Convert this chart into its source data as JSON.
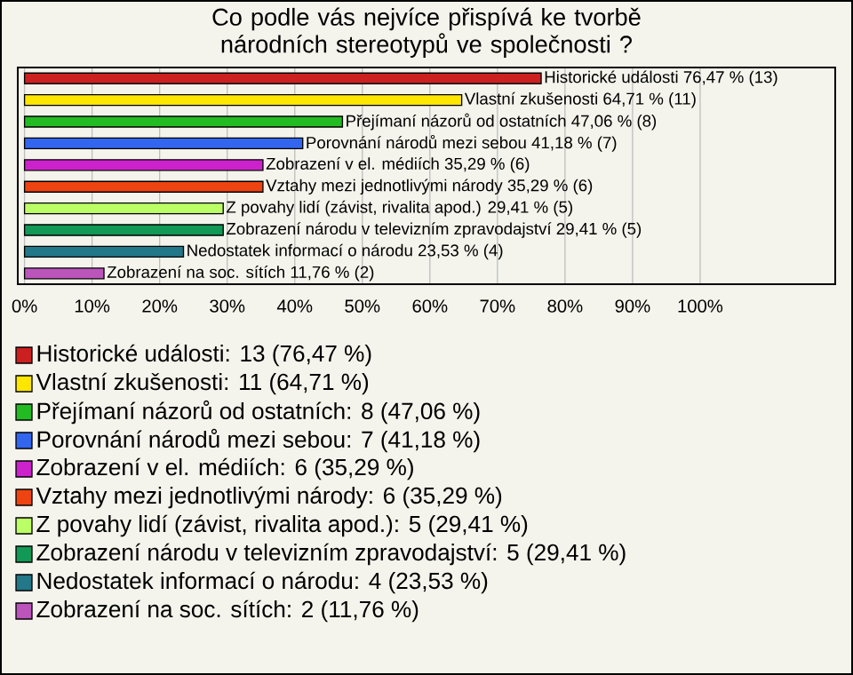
{
  "chart_data": {
    "type": "bar",
    "orientation": "horizontal",
    "title": "Co podle vás nejvíce přispívá ke tvorbě národních stereotypů ve společnosti ?",
    "categories": [
      null,
      null,
      null,
      null,
      null,
      null,
      null,
      null,
      null,
      null
    ],
    "values": [
      76.47,
      64.71,
      47.06,
      41.18,
      35.29,
      35.29,
      29.41,
      29.41,
      23.53,
      11.76
    ],
    "value_labels": [
      "Historické události 76,47 % (13)",
      "Vlastní zkušenosti 64,71 % (11)",
      "Přejímaní názorů od ostatních 47,06 % (8)",
      "Porovnání národů mezi sebou 41,18 % (7)",
      "Zobrazení v el. médiích 35,29 % (6)",
      "Vztahy mezi jednotlivými národy 35,29 % (6)",
      "Z povahy lidí (závist, rivalita apod.) 29,41 % (5)",
      "Zobrazení národu v televizním zpravodajství 29,41 % (5)",
      "Nedostatek informací o národu 23,53 % (4)",
      "Zobrazení na soc. sítích 11,76 % (2)"
    ],
    "colors": [
      "#cc1f1f",
      "#ffe600",
      "#22bb22",
      "#3366ee",
      "#cc22cc",
      "#ee4411",
      "#bbff66",
      "#119955",
      "#227788",
      "#bb55bb"
    ],
    "xlim": [
      -1,
      120
    ],
    "xticks": [
      {
        "value": 0,
        "label": "0%"
      },
      {
        "value": 10,
        "label": "10%"
      },
      {
        "value": 20,
        "label": "20%"
      },
      {
        "value": 30,
        "label": "30%"
      },
      {
        "value": 40,
        "label": "40%"
      },
      {
        "value": 50,
        "label": "50%"
      },
      {
        "value": 60,
        "label": "60%"
      },
      {
        "value": 70,
        "label": "70%"
      },
      {
        "value": 80,
        "label": "80%"
      },
      {
        "value": 90,
        "label": "90%"
      },
      {
        "value": 100,
        "label": "100%"
      }
    ],
    "grid": "x",
    "annotations": [
      "Historické události: 13 (76,47 %)",
      "Vlastní zkušenosti: 11 (64,71 %)",
      "Přejímaní názorů od ostatních: 8 (47,06 %)",
      "Porovnání národů mezi sebou: 7 (41,18 %)",
      "Zobrazení v el. médiích: 6 (35,29 %)",
      "Vztahy mezi jednotlivými národy: 6 (35,29 %)",
      "Z povahy lidí (závist, rivalita apod.): 5 (29,41 %)",
      "Zobrazení národu v televizním zpravodajství: 5 (29,41 %)",
      "Nedostatek informací o národu: 4 (23,53 %)",
      "Zobrazení na soc. sítích: 2 (11,76 %)"
    ]
  }
}
